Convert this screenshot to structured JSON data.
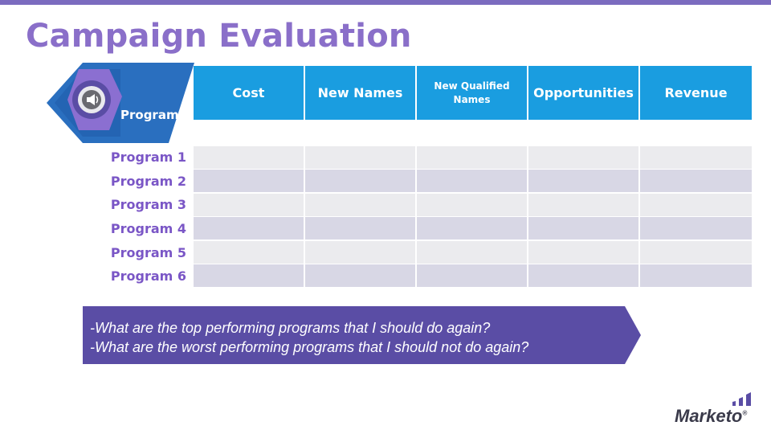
{
  "title": "Campaign Evaluation",
  "badge": {
    "label": "Programs",
    "icon": "megaphone-icon"
  },
  "table": {
    "columns": [
      "Cost",
      "New Names",
      "New Qualified Names",
      "Opportunities",
      "Revenue"
    ],
    "rows": [
      "Program 1",
      "Program 2",
      "Program 3",
      "Program 4",
      "Program 5",
      "Program 6"
    ]
  },
  "questions": [
    "-What are the top performing programs that I should do again?",
    "-What are the worst performing programs that I should not do again?"
  ],
  "logo": {
    "text": "Marketo",
    "mark": "®"
  },
  "colors": {
    "accent": "#8a6fc9",
    "header": "#1a9de0",
    "callout": "#5a4da5",
    "row_light": "#ebebee",
    "row_dark": "#d8d7e5"
  }
}
